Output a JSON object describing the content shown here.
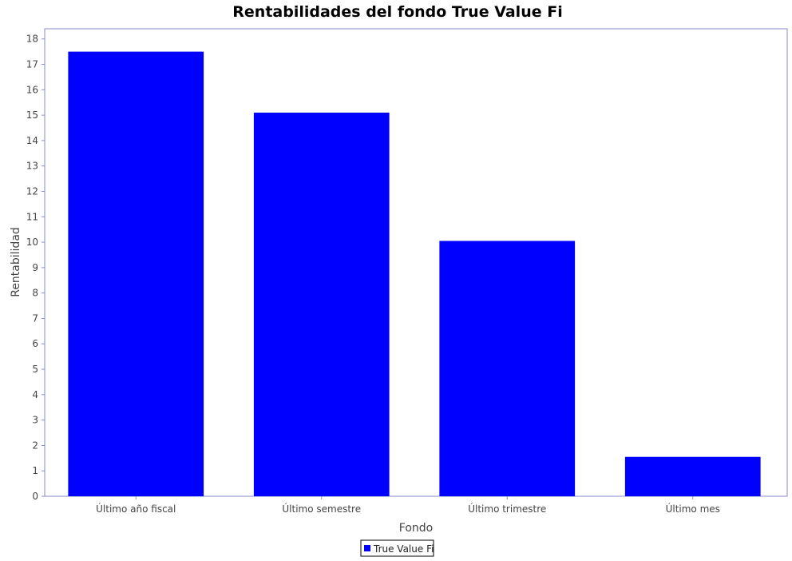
{
  "chart_data": {
    "type": "bar",
    "title": "Rentabilidades del fondo True Value Fi",
    "xlabel": "Fondo",
    "ylabel": "Rentabilidad",
    "categories": [
      "Último año fiscal",
      "Último semestre",
      "Último trimestre",
      "Último mes"
    ],
    "series": [
      {
        "name": "True Value Fi",
        "values": [
          17.5,
          15.1,
          10.05,
          1.55
        ],
        "color": "#0000ff"
      }
    ],
    "ylim": [
      0,
      18.4
    ],
    "yticks": [
      0,
      1,
      2,
      3,
      4,
      5,
      6,
      7,
      8,
      9,
      10,
      11,
      12,
      13,
      14,
      15,
      16,
      17,
      18
    ],
    "grid": false,
    "legend_position": "bottom"
  },
  "colors": {
    "plot_border": "#8a8ad0",
    "axis": "#8a8ad0",
    "background": "#ffffff"
  }
}
